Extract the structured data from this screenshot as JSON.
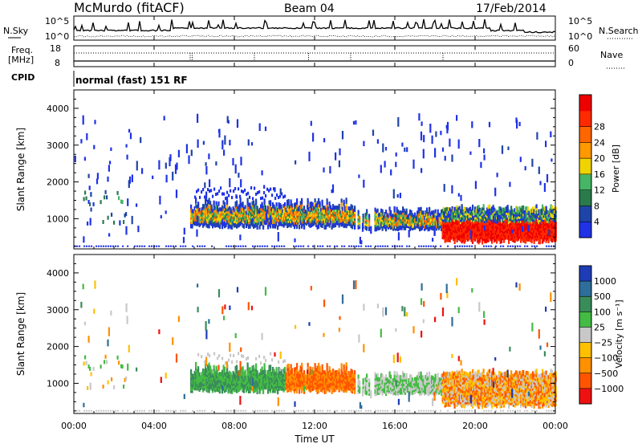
{
  "header": {
    "station": "McMurdo (fitACF)",
    "beam": "Beam 04",
    "date": "17/Feb/2014"
  },
  "noise_panel": {
    "left_label": "N.Sky",
    "right_label": "N.Search",
    "left_ticks": [
      "10^5",
      "10^0"
    ],
    "right_ticks": [
      "10^5",
      "10^0"
    ]
  },
  "freq_panel": {
    "left_label_1": "Freq.",
    "left_label_2": "[MHz]",
    "right_label": "Nave",
    "left_ticks": [
      "18",
      "8"
    ],
    "right_ticks": [
      "60",
      "0"
    ]
  },
  "cpid": {
    "label": "CPID",
    "text": "normal (fast) 151 RF"
  },
  "chart_data": [
    {
      "type": "heatmap",
      "title": "",
      "xlabel": "",
      "ylabel": "Slant Range [km]",
      "xlim": [
        0,
        24
      ],
      "ylim": [
        180,
        4500
      ],
      "yticks": [
        1000,
        2000,
        3000,
        4000
      ],
      "xticks": [
        0,
        4,
        8,
        12,
        16,
        20,
        24
      ],
      "colorbar": {
        "label": "Power [dB]",
        "ticks": [
          "4",
          "8",
          "12",
          "16",
          "20",
          "24",
          "28"
        ],
        "colors": [
          "#1f32e6",
          "#1f44a8",
          "#2a7a4c",
          "#47b566",
          "#f0d400",
          "#ff9900",
          "#ff6600",
          "#ff2a00",
          "#ee0000"
        ]
      }
    },
    {
      "type": "heatmap",
      "title": "",
      "xlabel": "Time UT",
      "ylabel": "Slant Range [km]",
      "xlim": [
        0,
        24
      ],
      "ylim": [
        180,
        4500
      ],
      "yticks": [
        1000,
        2000,
        3000,
        4000
      ],
      "xticks": [
        0,
        4,
        8,
        12,
        16,
        20,
        24
      ],
      "colorbar": {
        "label": "Velocity [m s⁻¹]",
        "ticks": [
          "1000",
          "500",
          "100",
          "25",
          "−25",
          "−100",
          "−500",
          "−1000"
        ],
        "colors": [
          "#1e3cb4",
          "#2e6e9a",
          "#3a8c5a",
          "#44bb44",
          "#c8c8c8",
          "#ffc000",
          "#ff9000",
          "#ff5500",
          "#ee1111"
        ]
      }
    }
  ],
  "x_tick_labels": [
    "00:00",
    "04:00",
    "08:00",
    "12:00",
    "16:00",
    "20:00",
    "00:00"
  ],
  "x_axis_title": "Time UT"
}
